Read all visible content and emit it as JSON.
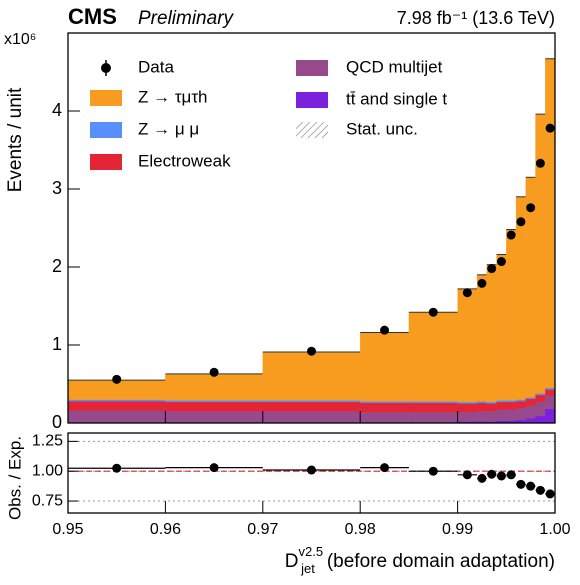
{
  "chart_data": {
    "type": "stacked_histogram",
    "experiment": "CMS",
    "status": "Preliminary",
    "lumi": "7.98 fb⁻¹ (13.6 TeV)",
    "multiplier": "x10⁶",
    "ylabel": "Events / unit",
    "xlabel": {
      "symbol": "D",
      "sub": "jet",
      "sup": "v2.5",
      "text": "(before domain adaptation)"
    },
    "bins": [
      0.95,
      0.96,
      0.97,
      0.98,
      0.985,
      0.99,
      0.992,
      0.993,
      0.994,
      0.995,
      0.996,
      0.997,
      0.998,
      0.999,
      1.0
    ],
    "series": [
      {
        "name": "tt̄ and single t",
        "color": "#7a21dd",
        "values": [
          0.01,
          0.01,
          0.01,
          0.01,
          0.01,
          0.02,
          0.02,
          0.02,
          0.03,
          0.03,
          0.04,
          0.06,
          0.09,
          0.18
        ]
      },
      {
        "name": "QCD multijet",
        "color": "#964a8b",
        "values": [
          0.15,
          0.14,
          0.14,
          0.13,
          0.13,
          0.12,
          0.13,
          0.13,
          0.14,
          0.14,
          0.15,
          0.16,
          0.18,
          0.17
        ]
      },
      {
        "name": "Electroweak",
        "color": "#e42536",
        "values": [
          0.12,
          0.12,
          0.12,
          0.12,
          0.12,
          0.11,
          0.11,
          0.1,
          0.1,
          0.1,
          0.09,
          0.09,
          0.09,
          0.08
        ]
      },
      {
        "name": "Z → μ μ",
        "color": "#5790fc",
        "values": [
          0.02,
          0.02,
          0.02,
          0.02,
          0.02,
          0.02,
          0.02,
          0.02,
          0.02,
          0.02,
          0.02,
          0.02,
          0.02,
          0.02
        ]
      },
      {
        "name": "Z → τμτh",
        "color": "#f89c20",
        "values": [
          0.25,
          0.34,
          0.62,
          0.88,
          1.14,
          1.45,
          1.62,
          1.76,
          1.87,
          2.19,
          2.6,
          2.82,
          3.58,
          4.22
        ]
      }
    ],
    "data": {
      "name": "Data",
      "color": "#000000",
      "values": [
        0.56,
        0.65,
        0.92,
        1.19,
        1.42,
        1.67,
        1.79,
        1.98,
        2.07,
        2.41,
        2.58,
        2.76,
        3.33,
        3.78
      ]
    },
    "unc_label": "Stat. unc.",
    "xlim": [
      0.95,
      1.0
    ],
    "xticks": [
      0.95,
      0.96,
      0.97,
      0.98,
      0.99,
      {
        "value": 1.0,
        "label": "1.00"
      }
    ],
    "ylim": [
      0,
      5
    ],
    "yticks": [
      0,
      1,
      2,
      3,
      4
    ],
    "ratio": {
      "ylabel": "Obs. / Exp.",
      "values": [
        1.025,
        1.03,
        1.01,
        1.03,
        1.0,
        0.97,
        0.94,
        0.975,
        0.96,
        0.97,
        0.89,
        0.875,
        0.84,
        0.81
      ],
      "ylim": [
        0.65,
        1.32
      ],
      "yticks": [
        {
          "value": 0.75,
          "label": "0.75"
        },
        {
          "value": 1.0,
          "label": "1.00"
        },
        {
          "value": 1.25,
          "label": "1.25"
        }
      ]
    }
  }
}
